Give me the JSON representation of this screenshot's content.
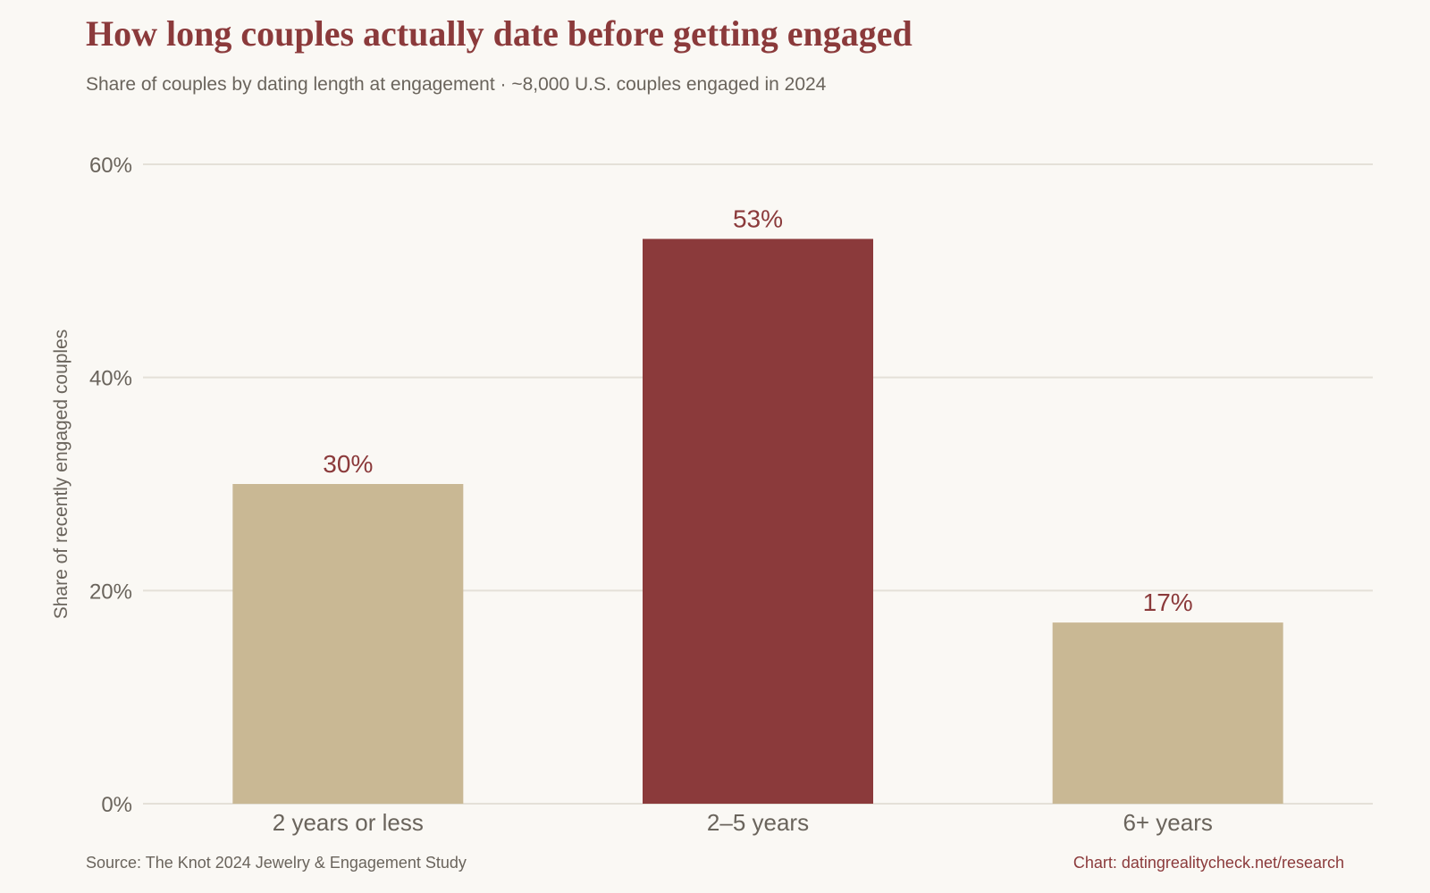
{
  "header": {
    "title": "How long couples actually date before getting engaged",
    "subtitle": "Share of couples by dating length at engagement · ~8,000 U.S. couples engaged in 2024"
  },
  "footer": {
    "source": "Source: The Knot 2024 Jewelry & Engagement Study",
    "credit": "Chart: datingrealitycheck.net/research"
  },
  "chart_data": {
    "type": "bar",
    "title": "How long couples actually date before getting engaged",
    "subtitle": "Share of couples by dating length at engagement · ~8,000 U.S. couples engaged in 2024",
    "xlabel": "",
    "ylabel": "Share of recently engaged couples",
    "categories": [
      "2 years or less",
      "2–5 years",
      "6+ years"
    ],
    "values": [
      30,
      53,
      17
    ],
    "data_labels": [
      "30%",
      "53%",
      "17%"
    ],
    "highlight_index": 1,
    "ylim": [
      0,
      60
    ],
    "yticks": [
      0,
      20,
      40,
      60
    ],
    "ytick_labels": [
      "0%",
      "20%",
      "40%",
      "60%"
    ],
    "grid": true,
    "legend": "none",
    "colors": {
      "bar": "#c9b894",
      "highlight": "#8b3a3b",
      "data_label": "#8b3a3b",
      "grid": "#e4e0d8",
      "axis_text": "#6a645c",
      "title": "#8b3a3b",
      "background": "#faf8f4"
    }
  }
}
